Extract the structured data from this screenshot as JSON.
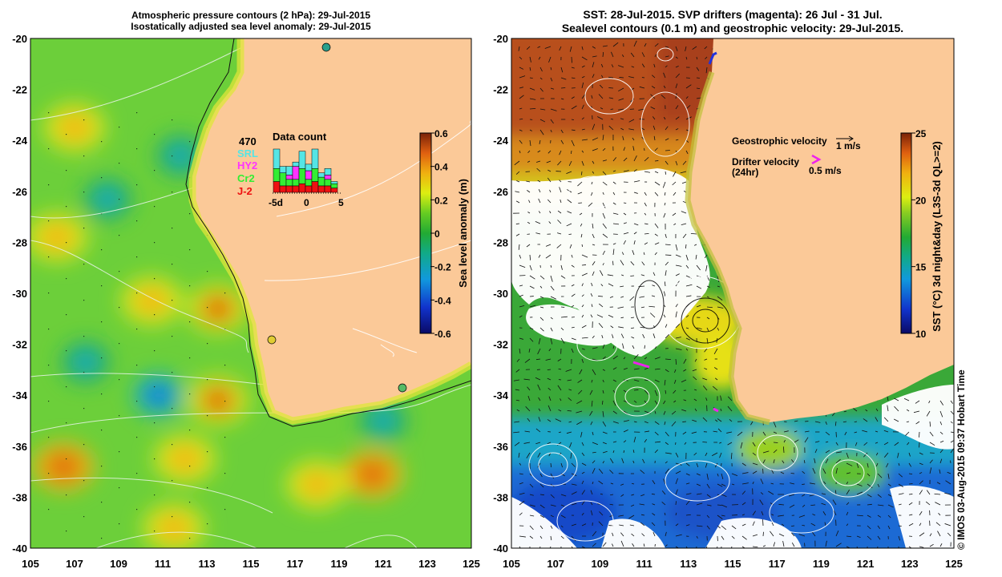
{
  "left_panel": {
    "title_line1": "Atmospheric pressure contours (2 hPa): 29-Jul-2015",
    "title_line2": "Isostatically adjusted sea level anomaly: 29-Jul-2015",
    "data_count": {
      "title": "Data count",
      "total": "470",
      "satellites": [
        {
          "name": "SRL",
          "color": "#55e5e5"
        },
        {
          "name": "HY2",
          "color": "#ff33ff"
        },
        {
          "name": "Cr2",
          "color": "#33ee33"
        },
        {
          "name": "J-2",
          "color": "#ee1111"
        }
      ],
      "x_ticks": [
        "-5d",
        "0",
        "5"
      ],
      "bars": [
        {
          "SRL": 9,
          "HY2": 0,
          "Cr2": 6,
          "J-2": 5
        },
        {
          "SRL": 3,
          "HY2": 0,
          "Cr2": 6,
          "J-2": 3
        },
        {
          "SRL": 4,
          "HY2": 2,
          "Cr2": 3,
          "J-2": 3
        },
        {
          "SRL": 2,
          "HY2": 6,
          "Cr2": 3,
          "J-2": 3
        },
        {
          "SRL": 8,
          "HY2": 0,
          "Cr2": 7,
          "J-2": 4
        },
        {
          "SRL": 3,
          "HY2": 4,
          "Cr2": 3,
          "J-2": 3
        },
        {
          "SRL": 9,
          "HY2": 0,
          "Cr2": 6,
          "J-2": 5
        },
        {
          "SRL": 2,
          "HY2": 0,
          "Cr2": 4,
          "J-2": 3
        },
        {
          "SRL": 3,
          "HY2": 2,
          "Cr2": 3,
          "J-2": 3
        },
        {
          "SRL": 1,
          "HY2": 0,
          "Cr2": 2,
          "J-2": 2
        }
      ]
    },
    "colorbar": {
      "label": "Sea level anomaly (m)",
      "min": -0.6,
      "max": 0.6,
      "ticks": [
        "0.6",
        "0.4",
        "0.2",
        "0",
        "-0.2",
        "-0.4",
        "-0.6"
      ]
    }
  },
  "right_panel": {
    "title_line1": "SST: 28-Jul-2015. SVP drifters (magenta): 26 Jul - 31 Jul.",
    "title_line2": "Sealevel contours (0.1 m) and geostrophic velocity: 29-Jul-2015.",
    "legend": {
      "geo_label": "Geostrophic velocity",
      "geo_scale": "1 m/s",
      "drifter_label_1": "Drifter velocity",
      "drifter_label_2": "(24hr)",
      "drifter_scale": "0.5 m/s"
    },
    "colorbar": {
      "label": "SST (°C) 3d night&day (L3S-3d QL>=2)",
      "min": 10,
      "max": 25,
      "ticks": [
        "25",
        "20",
        "15",
        "10"
      ]
    }
  },
  "axes": {
    "lon_ticks": [
      "105",
      "107",
      "109",
      "111",
      "113",
      "115",
      "117",
      "119",
      "121",
      "123",
      "125"
    ],
    "lat_ticks": [
      "-20",
      "-22",
      "-24",
      "-26",
      "-28",
      "-30",
      "-32",
      "-34",
      "-36",
      "-38",
      "-40"
    ],
    "lon_range": [
      105,
      125
    ],
    "lat_range": [
      -40,
      -20
    ]
  },
  "map_features": {
    "sea_level_highs": [
      {
        "lon": 107,
        "lat": -23.5,
        "v": 0.22
      },
      {
        "lon": 106.5,
        "lat": -36.8,
        "v": 0.35
      },
      {
        "lon": 113.5,
        "lat": -30.6,
        "v": 0.3
      },
      {
        "lon": 113.5,
        "lat": -34.2,
        "v": 0.3
      },
      {
        "lon": 120.5,
        "lat": -37.1,
        "v": 0.35
      },
      {
        "lon": 110.5,
        "lat": -30.3,
        "v": 0.22
      },
      {
        "lon": 106.2,
        "lat": -27.8,
        "v": 0.2
      },
      {
        "lon": 118,
        "lat": -37.5,
        "v": 0.2
      },
      {
        "lon": 112,
        "lat": -36.5,
        "v": 0.2
      },
      {
        "lon": 111.5,
        "lat": -39.2,
        "v": 0.2
      }
    ],
    "sea_level_lows": [
      {
        "lon": 110.8,
        "lat": -34.0,
        "v": -0.3
      },
      {
        "lon": 108.5,
        "lat": -26.3,
        "v": -0.2
      },
      {
        "lon": 111.8,
        "lat": -24.6,
        "v": -0.2
      },
      {
        "lon": 107.5,
        "lat": -32.7,
        "v": -0.15
      },
      {
        "lon": 121,
        "lat": -35.0,
        "v": -0.15
      }
    ]
  }
}
